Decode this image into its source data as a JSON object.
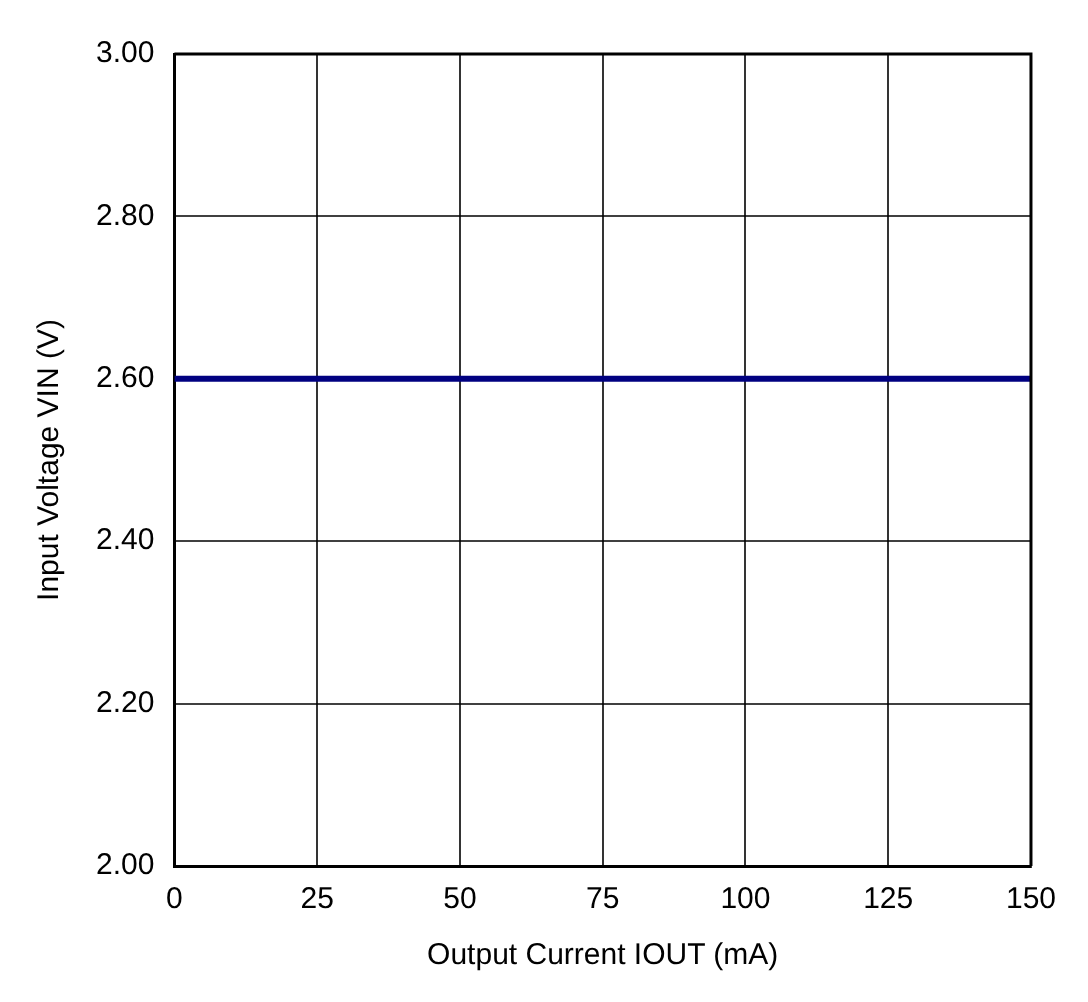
{
  "chart_data": {
    "type": "line",
    "xlabel": "Output Current IOUT (mA)",
    "ylabel": "Input Voltage VIN (V)",
    "x": [
      0,
      150
    ],
    "series": [
      {
        "color": "#000080",
        "values": [
          2.6,
          2.6
        ]
      }
    ],
    "xlim": [
      0,
      150
    ],
    "xticks": [
      0,
      25,
      50,
      75,
      100,
      125,
      150
    ],
    "ylim": [
      2,
      3
    ],
    "yticks": [
      {
        "value": 2,
        "label": "2.00"
      },
      {
        "value": 2.2,
        "label": "2.20"
      },
      {
        "value": 2.4,
        "label": "2.40"
      },
      {
        "value": 2.6,
        "label": "2.60"
      },
      {
        "value": 2.8,
        "label": "2.80"
      },
      {
        "value": 3,
        "label": "3.00"
      }
    ],
    "grid": true,
    "legend": false,
    "marker": "none",
    "line_style": "solid"
  }
}
